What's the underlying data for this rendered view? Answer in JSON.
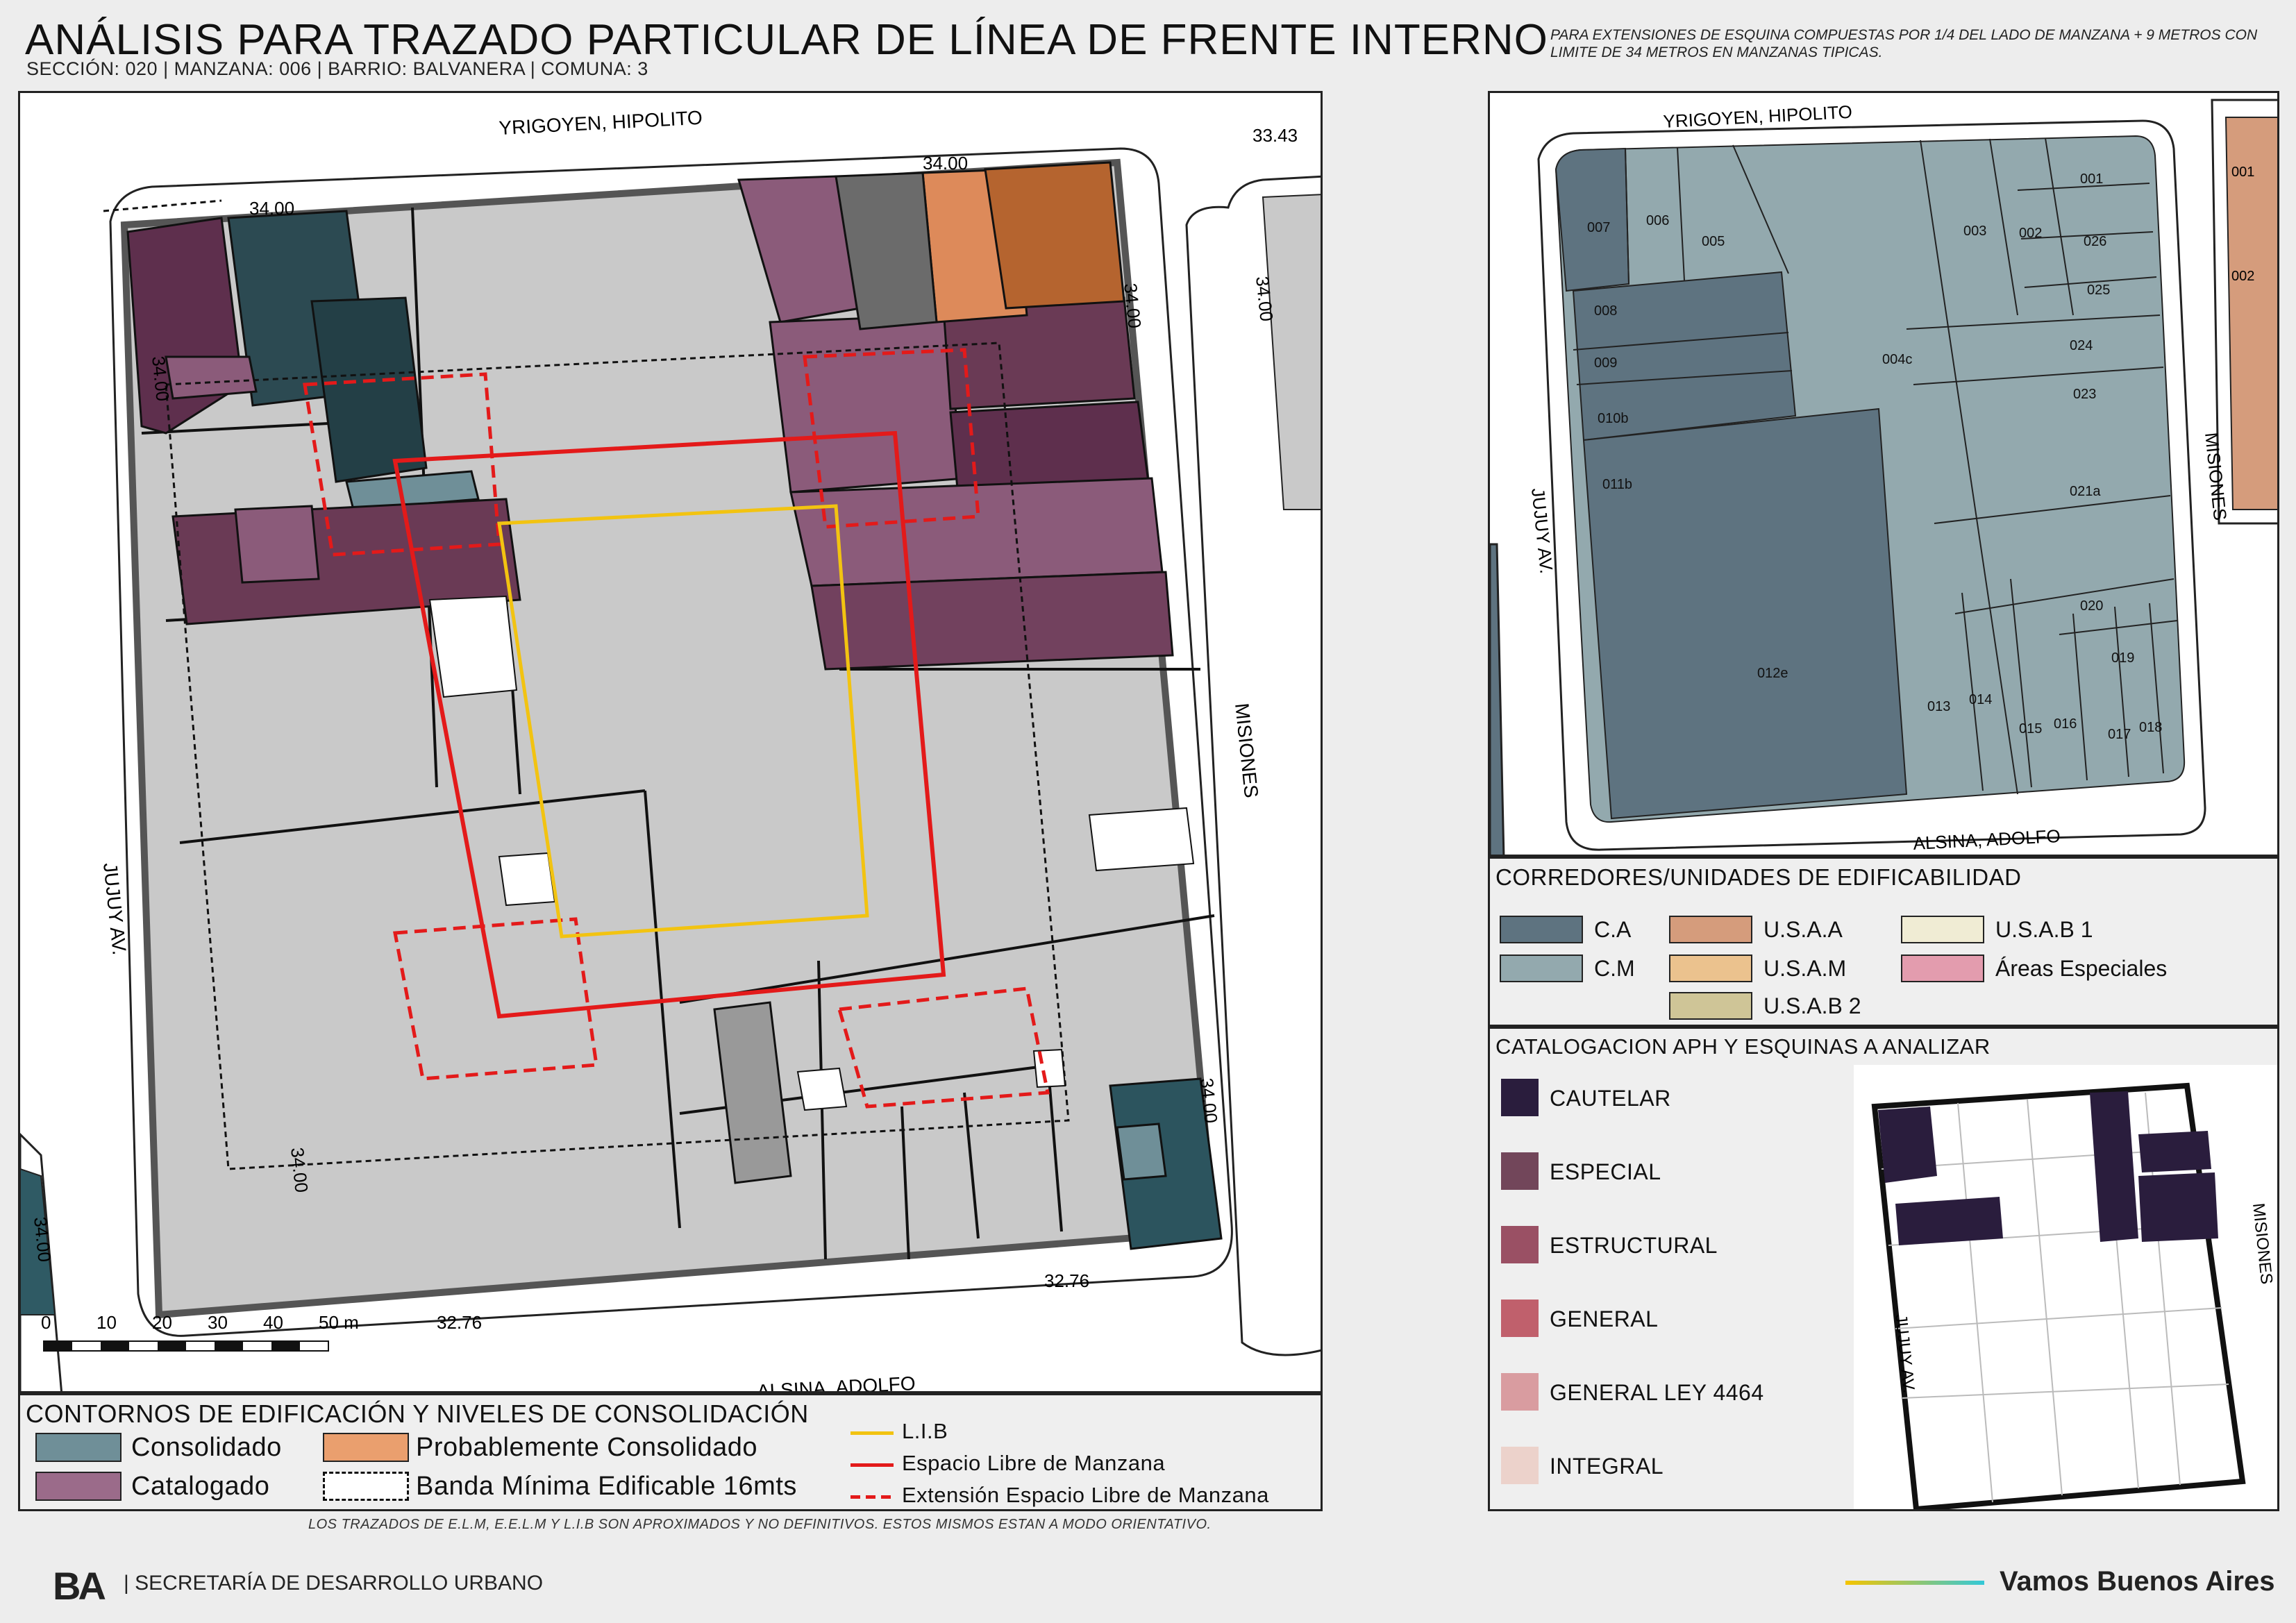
{
  "header": {
    "title": "ANÁLISIS PARA TRAZADO PARTICULAR DE LÍNEA DE FRENTE INTERNO",
    "subtitle": "SECCIÓN: 020 |  MANZANA: 006 | BARRIO: BALVANERA | COMUNA: 3",
    "note": "PARA EXTENSIONES DE ESQUINA COMPUESTAS POR 1/4 DEL LADO DE MANZANA + 9 METROS CON LIMITE DE 34 METROS EN MANZANAS TIPICAS."
  },
  "main_map": {
    "streets": {
      "north": "YRIGOYEN, HIPOLITO",
      "south": "ALSINA, ADOLFO",
      "west": "JUJUY AV.",
      "east": "MISIONES"
    },
    "dimensions": {
      "north_left": "34.00",
      "north_right": "34.00",
      "west_top": "34.00",
      "west_bottom": "34.00",
      "east_top": "34.00",
      "east_bottom": "34.00",
      "south_left": "32.76",
      "south_right": "32.76",
      "adjacent_top_right": "33.43",
      "adjacent_right_side": "34.00",
      "adjacent_left_bottom": "34.00"
    },
    "scale": {
      "ticks": [
        "0",
        "10",
        "20",
        "30",
        "40",
        "50 m"
      ]
    }
  },
  "right_map": {
    "streets": {
      "north": "YRIGOYEN, HIPOLITO",
      "south": "ALSINA, ADOLFO",
      "west": "JUJUY AV.",
      "east": "MISIONES"
    },
    "parcels": [
      "007",
      "006",
      "005",
      "004c",
      "003",
      "002",
      "001",
      "026",
      "025",
      "024",
      "023",
      "008",
      "009",
      "010b",
      "011b",
      "021a",
      "020",
      "019",
      "018",
      "017",
      "016",
      "015",
      "014",
      "013",
      "012e"
    ],
    "adjacent_parcels": [
      "001",
      "002"
    ]
  },
  "corridors": {
    "title": "CORREDORES/UNIDADES DE EDIFICABILIDAD",
    "items": [
      {
        "label": "C.A",
        "color": "#5e7380"
      },
      {
        "label": "C.M",
        "color": "#93a9ae"
      },
      {
        "label": "U.S.A.A",
        "color": "#d59c7c"
      },
      {
        "label": "U.S.A.M",
        "color": "#ebc28e"
      },
      {
        "label": "U.S.A.B 2",
        "color": "#cfc597"
      },
      {
        "label": "U.S.A.B 1",
        "color": "#f0ecd4"
      },
      {
        "label": "Áreas Especiales",
        "color": "#e39cae"
      }
    ]
  },
  "catalog": {
    "title": "CATALOGACION APH Y ESQUINAS A ANALIZAR",
    "items": [
      {
        "label": "CAUTELAR",
        "color": "#2a1d3d"
      },
      {
        "label": "ESPECIAL",
        "color": "#72465a"
      },
      {
        "label": "ESTRUCTURAL",
        "color": "#9a5064"
      },
      {
        "label": "GENERAL",
        "color": "#c0606c"
      },
      {
        "label": "GENERAL LEY 4464",
        "color": "#d99ca0"
      },
      {
        "label": "INTEGRAL",
        "color": "#ecd2cb"
      }
    ],
    "inset_street_west": "JUJUY AV.",
    "inset_street_east": "MISIONES"
  },
  "legend": {
    "title": "CONTORNOS DE EDIFICACIÓN Y NIVELES DE CONSOLIDACIÓN",
    "items": [
      {
        "label": "Consolidado",
        "color": "#6f8f98"
      },
      {
        "label": "Probablemente Consolidado",
        "color": "#ea9f6e"
      },
      {
        "label": "Catalogado",
        "color": "#9b6b8a"
      },
      {
        "label": "Banda Mínima Edificable 16mts",
        "color": "#ffffff"
      }
    ],
    "lines": [
      {
        "label": "L.I.B",
        "color": "#f2c311"
      },
      {
        "label": "Espacio Libre de Manzana",
        "color": "#e31a1a"
      },
      {
        "label": "Extensión Espacio Libre de Manzana",
        "color": "#e31a1a"
      }
    ]
  },
  "footer": {
    "note": "LOS TRAZADOS DE E.L.M, E.E.L.M Y L.I.B SON APROXIMADOS Y NO DEFINITIVOS. ESTOS MISMOS ESTAN A MODO ORIENTATIVO.",
    "logo": "BA",
    "org": "| SECRETARÍA DE DESARROLLO URBANO",
    "brand": "Vamos Buenos Aires"
  }
}
